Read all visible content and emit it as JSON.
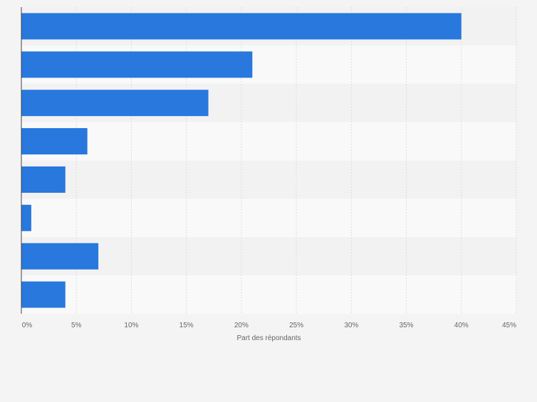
{
  "chart_data": {
    "type": "bar",
    "orientation": "horizontal",
    "categories": [
      "",
      "",
      "",
      "",
      "",
      "",
      "",
      ""
    ],
    "values": [
      40,
      21,
      17,
      6,
      4,
      0.9,
      7,
      4
    ],
    "unit": "%",
    "xlabel": "Part des répondants",
    "ylabel": "",
    "xlim": [
      0,
      45
    ],
    "x_ticks": [
      0,
      5,
      10,
      15,
      20,
      25,
      30,
      35,
      40,
      45
    ],
    "x_tick_labels": [
      "0%",
      "5%",
      "10%",
      "15%",
      "20%",
      "25%",
      "30%",
      "35%",
      "40%",
      "45%"
    ],
    "grid": true,
    "legend": "none",
    "colors": {
      "bar": "#2878de",
      "band_dark": "#f2f2f2",
      "band_light": "#f9f9f9",
      "grid": "#dddddd",
      "axis": "#444444",
      "tick_text": "#666666",
      "background": "#f4f4f4"
    }
  }
}
